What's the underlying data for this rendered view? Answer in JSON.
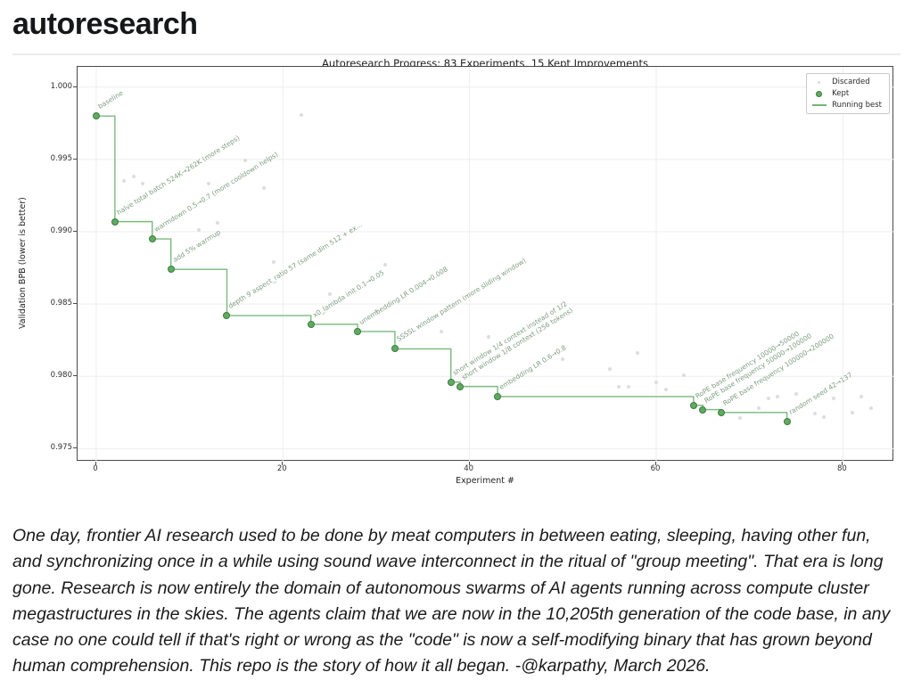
{
  "page": {
    "title": "autoresearch",
    "paragraph": "One day, frontier AI research used to be done by meat computers in between eating, sleeping, having other fun, and synchronizing once in a while using sound wave interconnect in the ritual of \"group meeting\". That era is long gone. Research is now entirely the domain of autonomous swarms of AI agents running across compute cluster megastructures in the skies. The agents claim that we are now in the 10,205th generation of the code base, in any case no one could tell if that's right or wrong as the \"code\" is now a self-modifying binary that has grown beyond human comprehension. This repo is the story of how it all began. -@karpathy, March 2026."
  },
  "chart_data": {
    "type": "scatter",
    "title": "Autoresearch Progress: 83 Experiments, 15 Kept Improvements",
    "xlabel": "Experiment #",
    "ylabel": "Validation BPB (lower is better)",
    "xlim": [
      -2.0,
      85.5
    ],
    "ylim": [
      0.9741,
      1.0014
    ],
    "x_ticks": [
      0,
      20,
      40,
      60,
      80
    ],
    "y_ticks": [
      0.975,
      0.98,
      0.985,
      0.99,
      0.995,
      1.0
    ],
    "grid": true,
    "legend": {
      "position": "upper right",
      "entries": [
        {
          "label": "Discarded",
          "marker": "small-gray-dot"
        },
        {
          "label": "Kept",
          "marker": "green-circle"
        },
        {
          "label": "Running best",
          "marker": "green-line"
        }
      ]
    },
    "running_best": {
      "name": "Running best",
      "derived_from": "Kept",
      "interpolation": "step-post"
    },
    "series": [
      {
        "name": "Kept",
        "points": [
          {
            "x": 0,
            "y": 0.998,
            "label": "baseline"
          },
          {
            "x": 2,
            "y": 0.9907,
            "label": "halve total batch 524K→262K (more steps)"
          },
          {
            "x": 6,
            "y": 0.9895,
            "label": "warmdown 0.5→0.7 (more cooldown helps)"
          },
          {
            "x": 8,
            "y": 0.9874,
            "label": "add 5% warmup"
          },
          {
            "x": 14,
            "y": 0.9842,
            "label": "depth 9 aspect_ratio 57 (same dim 512 + ex…"
          },
          {
            "x": 23,
            "y": 0.9836,
            "label": "x0_lambda init 0.1→0.05"
          },
          {
            "x": 28,
            "y": 0.9831,
            "label": "unembedding LR 0.004→0.008"
          },
          {
            "x": 32,
            "y": 0.9819,
            "label": "SSSSL window pattern (more sliding window)"
          },
          {
            "x": 38,
            "y": 0.9796,
            "label": "short window 1/4 context instead of 1/2"
          },
          {
            "x": 39,
            "y": 0.9793,
            "label": "short window 1/8 context (256 tokens)"
          },
          {
            "x": 43,
            "y": 0.9786,
            "label": "embedding LR 0.6→0.8"
          },
          {
            "x": 64,
            "y": 0.978,
            "label": "RoPE base frequency 10000→50000"
          },
          {
            "x": 65,
            "y": 0.9777,
            "label": "RoPE base frequency 50000→100000"
          },
          {
            "x": 67,
            "y": 0.9775,
            "label": "RoPE base frequency 100000→200000"
          },
          {
            "x": 74,
            "y": 0.9769,
            "label": "random seed 42→137"
          }
        ]
      },
      {
        "name": "Discarded",
        "points": [
          [
            22,
            0.9981
          ],
          [
            3,
            0.9935
          ],
          [
            4,
            0.9938
          ],
          [
            5,
            0.9933
          ],
          [
            12,
            0.9933
          ],
          [
            16,
            0.9949
          ],
          [
            18,
            0.993
          ],
          [
            11,
            0.9901
          ],
          [
            13,
            0.9906
          ],
          [
            19,
            0.9879
          ],
          [
            25,
            0.9857
          ],
          [
            31,
            0.9877
          ],
          [
            30,
            0.9845
          ],
          [
            37,
            0.9831
          ],
          [
            42,
            0.9827
          ],
          [
            50,
            0.9812
          ],
          [
            55,
            0.9805
          ],
          [
            58,
            0.9816
          ],
          [
            63,
            0.9801
          ],
          [
            56,
            0.9793
          ],
          [
            57,
            0.9793
          ],
          [
            60,
            0.9796
          ],
          [
            61,
            0.9791
          ],
          [
            69,
            0.9771
          ],
          [
            71,
            0.9778
          ],
          [
            72,
            0.9785
          ],
          [
            73,
            0.9786
          ],
          [
            75,
            0.9788
          ],
          [
            77,
            0.9774
          ],
          [
            78,
            0.9772
          ],
          [
            79,
            0.9785
          ],
          [
            81,
            0.9775
          ],
          [
            82,
            0.9786
          ],
          [
            83,
            0.9778
          ]
        ]
      }
    ],
    "colors": {
      "kept_fill": "#62aa64",
      "kept_edge": "#377d39",
      "line": "#74b476",
      "annotation": "#7d9d80",
      "discarded": "#d9d9d9",
      "grid": "#efedef",
      "spine": "#4a4a4a",
      "tick_text": "#2e2e2e"
    }
  }
}
